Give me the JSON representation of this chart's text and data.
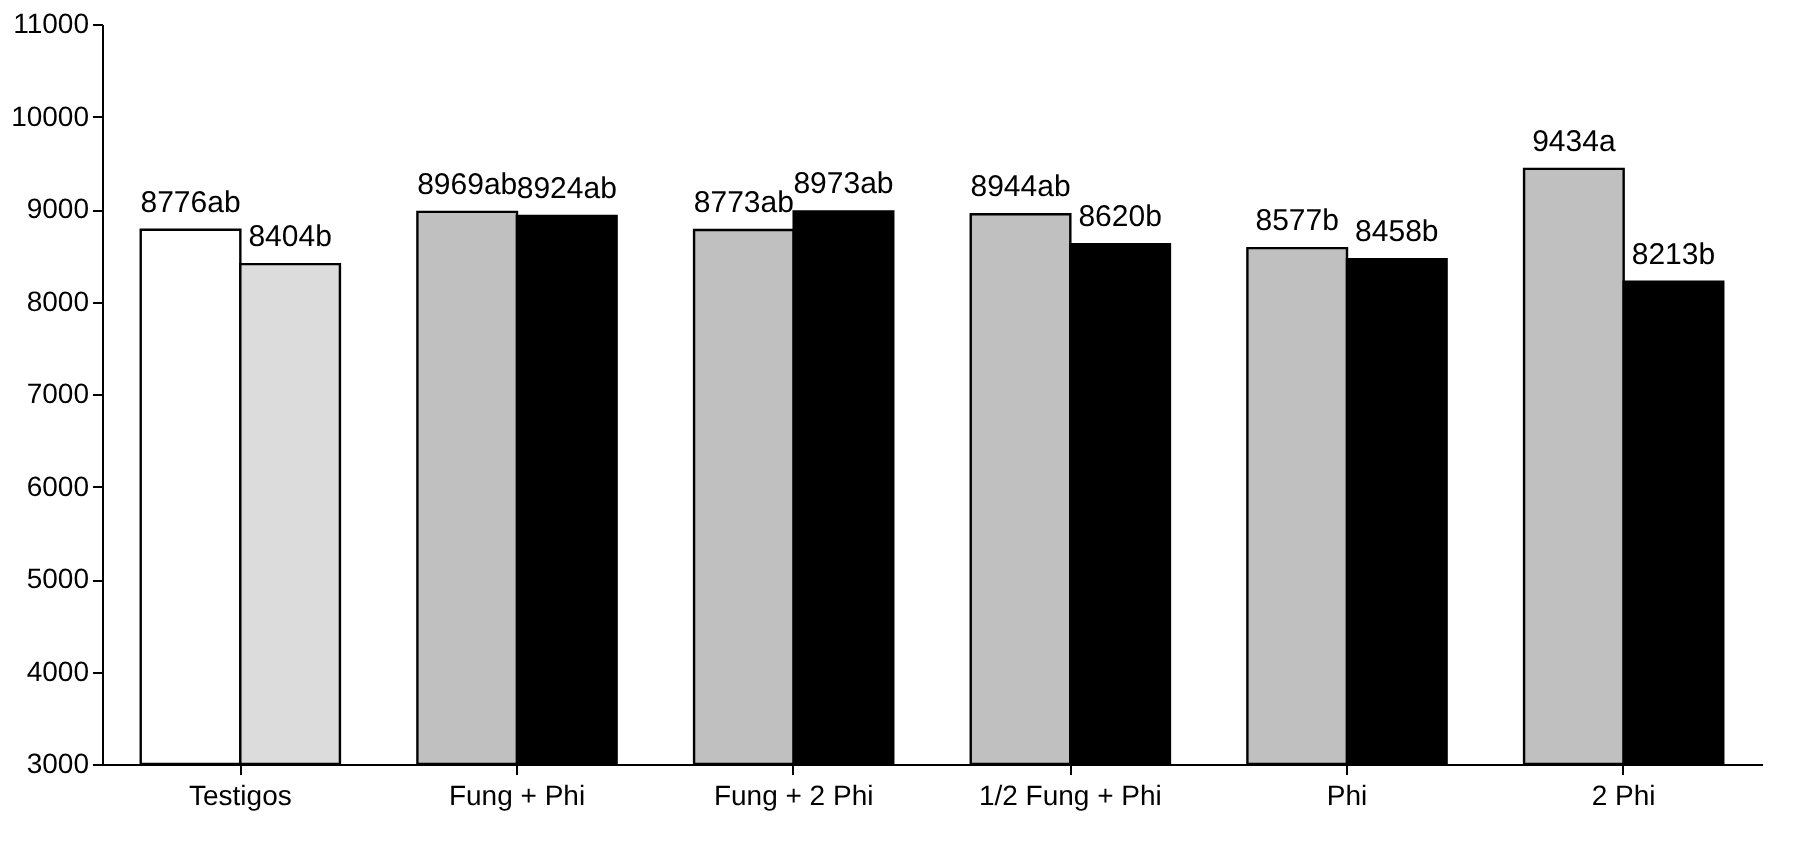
{
  "chart_data": {
    "type": "bar",
    "categories": [
      "Testigos",
      "Fung + Phi",
      "Fung + 2 Phi",
      "1/2 Fung + Phi",
      "Phi",
      "2 Phi"
    ],
    "series": [
      {
        "colors": [
          "#ffffff",
          "#c0c0c0",
          "#c0c0c0",
          "#c0c0c0",
          "#c0c0c0",
          "#c0c0c0"
        ],
        "values": [
          8776,
          8969,
          8773,
          8944,
          8577,
          9434
        ],
        "value_labels": [
          "8776ab",
          "8969ab",
          "8773ab",
          "8944ab",
          "8577b",
          "9434a"
        ]
      },
      {
        "colors": [
          "#dcdcdc",
          "#000000",
          "#000000",
          "#000000",
          "#000000",
          "#000000"
        ],
        "values": [
          8404,
          8924,
          8973,
          8620,
          8458,
          8213
        ],
        "value_labels": [
          "8404b",
          "8924ab",
          "8973ab",
          "8620b",
          "8458b",
          "8213b"
        ]
      }
    ],
    "ylim": [
      3000,
      11000
    ],
    "yticks": [
      3000,
      4000,
      5000,
      6000,
      7000,
      8000,
      9000,
      10000,
      11000
    ],
    "grid": false
  }
}
